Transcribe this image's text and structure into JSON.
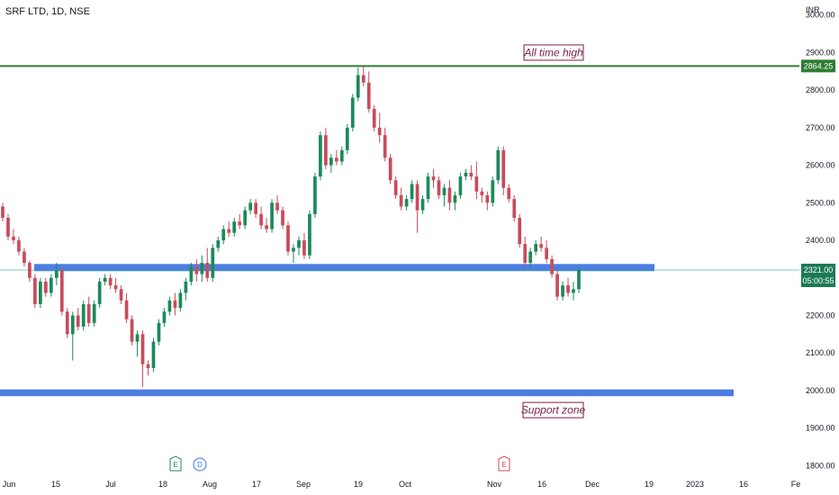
{
  "chart_data": {
    "type": "candlestick",
    "title": "SRF LTD, 1D, NSE",
    "currency": "INR",
    "ylim": [
      1765,
      3040
    ],
    "y_ticks": [
      1800,
      1900,
      2000,
      2100,
      2200,
      2300,
      2400,
      2500,
      2600,
      2700,
      2800,
      2900,
      3000
    ],
    "y_tick_labels": [
      "1800.00",
      "1900.00",
      "2000.00",
      "2100.00",
      "2200.00",
      "2300.00",
      "2400.00",
      "2500.00",
      "2600.00",
      "2700.00",
      "2800.00",
      "2900.00",
      "3000.00"
    ],
    "x_ticks": [
      "Jun",
      "15",
      "Jul",
      "18",
      "Aug",
      "17",
      "Sep",
      "19",
      "Oct",
      "Nov",
      "16",
      "Dec",
      "19",
      "2023",
      "16",
      "Fe"
    ],
    "last_price_label": "2321.00",
    "countdown_label": "05:00:55",
    "last_price": 2321,
    "ath_label": "2864.25",
    "ath_price": 2864.25,
    "annotations": [
      {
        "text": "All time high",
        "price": 2900
      },
      {
        "text": "Support zone",
        "price": 1948
      }
    ],
    "zones": [
      {
        "name": "resistance-support-band",
        "low": 2318,
        "high": 2337
      },
      {
        "name": "support-zone",
        "low": 1985,
        "high": 2003
      }
    ],
    "events": [
      {
        "letter": "E",
        "type": "earnings"
      },
      {
        "letter": "D",
        "type": "dividend"
      },
      {
        "letter": "E",
        "type": "earnings-upcoming"
      }
    ],
    "candles": [
      [
        2490,
        2500,
        2450,
        2460
      ],
      [
        2460,
        2470,
        2400,
        2410
      ],
      [
        2410,
        2430,
        2390,
        2400
      ],
      [
        2400,
        2410,
        2360,
        2370
      ],
      [
        2370,
        2380,
        2330,
        2340
      ],
      [
        2340,
        2345,
        2290,
        2300
      ],
      [
        2300,
        2310,
        2220,
        2230
      ],
      [
        2230,
        2300,
        2220,
        2290
      ],
      [
        2290,
        2300,
        2250,
        2260
      ],
      [
        2260,
        2310,
        2250,
        2300
      ],
      [
        2300,
        2340,
        2280,
        2320
      ],
      [
        2320,
        2330,
        2200,
        2210
      ],
      [
        2210,
        2220,
        2140,
        2150
      ],
      [
        2150,
        2210,
        2080,
        2200
      ],
      [
        2200,
        2220,
        2160,
        2170
      ],
      [
        2170,
        2240,
        2160,
        2230
      ],
      [
        2230,
        2250,
        2170,
        2180
      ],
      [
        2180,
        2240,
        2170,
        2230
      ],
      [
        2230,
        2300,
        2220,
        2290
      ],
      [
        2290,
        2310,
        2280,
        2300
      ],
      [
        2300,
        2310,
        2270,
        2280
      ],
      [
        2280,
        2300,
        2260,
        2270
      ],
      [
        2270,
        2280,
        2230,
        2240
      ],
      [
        2240,
        2260,
        2180,
        2190
      ],
      [
        2190,
        2200,
        2120,
        2130
      ],
      [
        2130,
        2160,
        2090,
        2150
      ],
      [
        2150,
        2160,
        2010,
        2070
      ],
      [
        2070,
        2080,
        2040,
        2060
      ],
      [
        2060,
        2140,
        2050,
        2130
      ],
      [
        2130,
        2190,
        2120,
        2180
      ],
      [
        2180,
        2220,
        2170,
        2210
      ],
      [
        2210,
        2250,
        2200,
        2240
      ],
      [
        2240,
        2260,
        2200,
        2220
      ],
      [
        2220,
        2270,
        2210,
        2260
      ],
      [
        2260,
        2300,
        2240,
        2290
      ],
      [
        2290,
        2340,
        2280,
        2330
      ],
      [
        2330,
        2350,
        2290,
        2310
      ],
      [
        2310,
        2360,
        2290,
        2340
      ],
      [
        2340,
        2380,
        2290,
        2300
      ],
      [
        2300,
        2390,
        2290,
        2380
      ],
      [
        2380,
        2410,
        2370,
        2400
      ],
      [
        2400,
        2440,
        2390,
        2430
      ],
      [
        2430,
        2450,
        2410,
        2420
      ],
      [
        2420,
        2460,
        2410,
        2450
      ],
      [
        2450,
        2470,
        2430,
        2440
      ],
      [
        2440,
        2490,
        2430,
        2480
      ],
      [
        2480,
        2510,
        2470,
        2500
      ],
      [
        2500,
        2510,
        2460,
        2470
      ],
      [
        2470,
        2490,
        2430,
        2440
      ],
      [
        2440,
        2460,
        2420,
        2430
      ],
      [
        2430,
        2510,
        2420,
        2500
      ],
      [
        2500,
        2520,
        2470,
        2480
      ],
      [
        2480,
        2490,
        2430,
        2440
      ],
      [
        2440,
        2450,
        2360,
        2370
      ],
      [
        2370,
        2390,
        2340,
        2380
      ],
      [
        2380,
        2410,
        2360,
        2400
      ],
      [
        2400,
        2420,
        2350,
        2360
      ],
      [
        2360,
        2480,
        2350,
        2470
      ],
      [
        2470,
        2580,
        2460,
        2570
      ],
      [
        2570,
        2690,
        2560,
        2680
      ],
      [
        2680,
        2700,
        2590,
        2600
      ],
      [
        2600,
        2630,
        2580,
        2620
      ],
      [
        2620,
        2640,
        2600,
        2610
      ],
      [
        2610,
        2650,
        2600,
        2640
      ],
      [
        2640,
        2710,
        2630,
        2700
      ],
      [
        2700,
        2790,
        2690,
        2780
      ],
      [
        2780,
        2860,
        2770,
        2840
      ],
      [
        2840,
        2864,
        2810,
        2820
      ],
      [
        2820,
        2850,
        2740,
        2750
      ],
      [
        2750,
        2760,
        2690,
        2700
      ],
      [
        2700,
        2740,
        2660,
        2680
      ],
      [
        2680,
        2700,
        2610,
        2620
      ],
      [
        2620,
        2630,
        2550,
        2560
      ],
      [
        2560,
        2570,
        2510,
        2520
      ],
      [
        2520,
        2540,
        2480,
        2490
      ],
      [
        2490,
        2520,
        2480,
        2510
      ],
      [
        2510,
        2560,
        2500,
        2550
      ],
      [
        2550,
        2560,
        2420,
        2480
      ],
      [
        2480,
        2520,
        2470,
        2510
      ],
      [
        2510,
        2580,
        2500,
        2570
      ],
      [
        2570,
        2590,
        2540,
        2560
      ],
      [
        2560,
        2570,
        2510,
        2520
      ],
      [
        2520,
        2550,
        2490,
        2540
      ],
      [
        2540,
        2560,
        2480,
        2500
      ],
      [
        2500,
        2530,
        2480,
        2520
      ],
      [
        2520,
        2580,
        2510,
        2570
      ],
      [
        2570,
        2590,
        2560,
        2580
      ],
      [
        2580,
        2600,
        2560,
        2570
      ],
      [
        2570,
        2610,
        2510,
        2530
      ],
      [
        2530,
        2540,
        2500,
        2520
      ],
      [
        2520,
        2530,
        2480,
        2500
      ],
      [
        2500,
        2570,
        2490,
        2560
      ],
      [
        2560,
        2650,
        2550,
        2640
      ],
      [
        2640,
        2650,
        2520,
        2540
      ],
      [
        2540,
        2550,
        2500,
        2510
      ],
      [
        2510,
        2520,
        2450,
        2460
      ],
      [
        2460,
        2470,
        2380,
        2390
      ],
      [
        2390,
        2410,
        2330,
        2340
      ],
      [
        2340,
        2380,
        2330,
        2370
      ],
      [
        2370,
        2400,
        2360,
        2390
      ],
      [
        2390,
        2410,
        2370,
        2380
      ],
      [
        2380,
        2400,
        2340,
        2350
      ],
      [
        2350,
        2360,
        2300,
        2310
      ],
      [
        2310,
        2320,
        2240,
        2250
      ],
      [
        2250,
        2290,
        2240,
        2280
      ],
      [
        2280,
        2300,
        2250,
        2260
      ],
      [
        2260,
        2290,
        2240,
        2270
      ],
      [
        2270,
        2330,
        2260,
        2321
      ]
    ]
  }
}
